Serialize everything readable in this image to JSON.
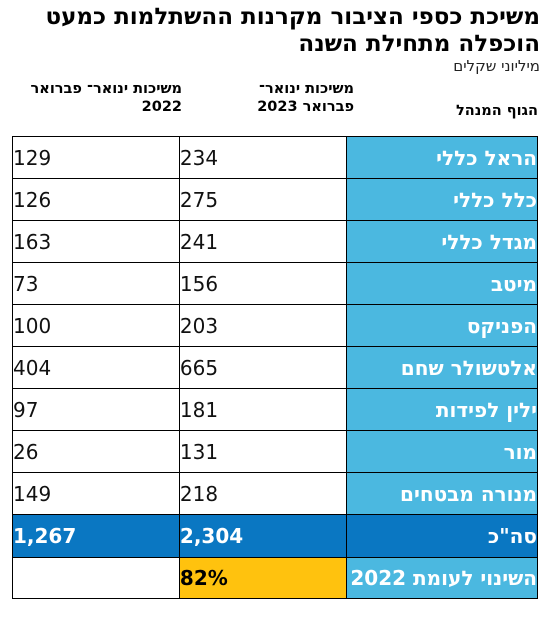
{
  "title": "משיכת כספי הציבור מקרנות ההשתלמות כמעט הוכפלה מתחילת השנה",
  "subtitle": "מיליוני שקלים",
  "chart_data": {
    "type": "table",
    "columns": [
      "הגוף המנהל",
      "משיכות ינואר־ פברואר 2023",
      "משיכות ינואר־ פברואר 2022"
    ],
    "rows": [
      {
        "name": "הראל כללי",
        "y2023": "234",
        "y2022": "129"
      },
      {
        "name": "כלל כללי",
        "y2023": "275",
        "y2022": "126"
      },
      {
        "name": "מגדל כללי",
        "y2023": "241",
        "y2022": "163"
      },
      {
        "name": "מיטב",
        "y2023": "156",
        "y2022": "73"
      },
      {
        "name": "הפניקס",
        "y2023": "203",
        "y2022": "100"
      },
      {
        "name": "אלטשולר שחם",
        "y2023": "665",
        "y2022": "404"
      },
      {
        "name": "ילין לפידות",
        "y2023": "181",
        "y2022": "97"
      },
      {
        "name": "מור",
        "y2023": "131",
        "y2022": "26"
      },
      {
        "name": "מנורה מבטחים",
        "y2023": "218",
        "y2022": "149"
      }
    ],
    "total": {
      "name": "סה\"כ",
      "y2023": "2,304",
      "y2022": "1,267"
    },
    "change": {
      "name": "השינוי לעומת 2022",
      "y2023": "82%",
      "y2022": ""
    }
  },
  "colors": {
    "name_cell": "#4bb8e0",
    "total_row": "#0a77c2",
    "change_highlight": "#ffc20e"
  }
}
